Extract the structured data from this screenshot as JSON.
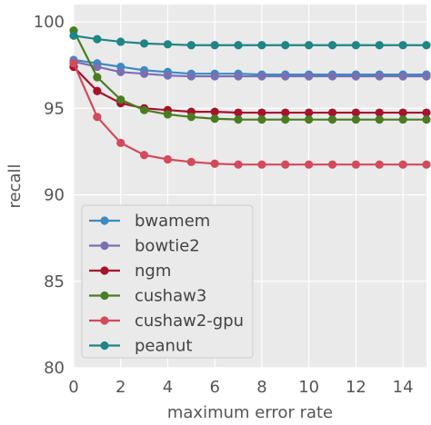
{
  "chart_data": {
    "type": "line",
    "title": "",
    "xlabel": "maximum error rate",
    "ylabel": "recall",
    "xlim": [
      0,
      15
    ],
    "ylim": [
      80,
      101
    ],
    "xticks": [
      0,
      2,
      4,
      6,
      8,
      10,
      12,
      14
    ],
    "yticks": [
      80,
      85,
      90,
      95,
      100
    ],
    "grid": true,
    "legend_position": "lower-left",
    "x": [
      0,
      1,
      2,
      3,
      4,
      5,
      6,
      7,
      8,
      9,
      10,
      11,
      12,
      13,
      14,
      15
    ],
    "series": [
      {
        "name": "bwamem",
        "color": "#3a8bc4",
        "values": [
          97.8,
          97.6,
          97.4,
          97.2,
          97.1,
          97.0,
          97.0,
          97.0,
          96.95,
          96.95,
          96.95,
          96.95,
          96.95,
          96.95,
          96.95,
          96.95
        ]
      },
      {
        "name": "bowtie2",
        "color": "#7b6fb3",
        "values": [
          97.7,
          97.4,
          97.1,
          97.0,
          96.9,
          96.85,
          96.85,
          96.85,
          96.85,
          96.85,
          96.85,
          96.85,
          96.85,
          96.85,
          96.85,
          96.85
        ]
      },
      {
        "name": "ngm",
        "color": "#a5122a",
        "values": [
          97.4,
          96.0,
          95.3,
          95.0,
          94.9,
          94.8,
          94.8,
          94.75,
          94.75,
          94.75,
          94.75,
          94.75,
          94.75,
          94.75,
          94.75,
          94.75
        ]
      },
      {
        "name": "cushaw3",
        "color": "#4a7c22",
        "values": [
          99.5,
          96.8,
          95.5,
          94.9,
          94.65,
          94.5,
          94.4,
          94.35,
          94.35,
          94.35,
          94.35,
          94.35,
          94.35,
          94.35,
          94.35,
          94.35
        ]
      },
      {
        "name": "cushaw2-gpu",
        "color": "#d24a5c",
        "values": [
          97.6,
          94.5,
          93.0,
          92.3,
          92.05,
          91.9,
          91.8,
          91.75,
          91.75,
          91.75,
          91.75,
          91.75,
          91.75,
          91.75,
          91.75,
          91.75
        ]
      },
      {
        "name": "peanut",
        "color": "#1f8585",
        "values": [
          99.2,
          99.0,
          98.85,
          98.75,
          98.7,
          98.65,
          98.65,
          98.65,
          98.65,
          98.65,
          98.65,
          98.65,
          98.65,
          98.65,
          98.65,
          98.65
        ]
      }
    ]
  }
}
